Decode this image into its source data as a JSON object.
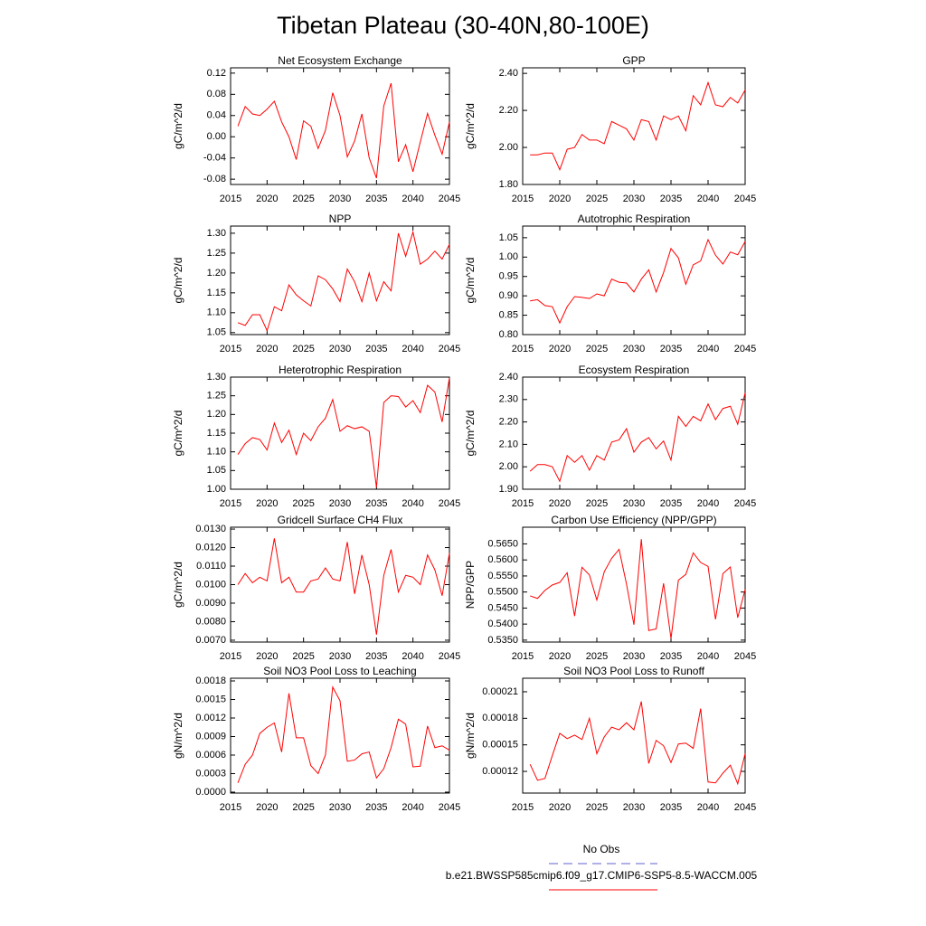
{
  "title": "Tibetan Plateau (30-40N,80-100E)",
  "legend": [
    {
      "label": "No Obs",
      "color": "#6060d0",
      "dashed": true
    },
    {
      "label": "b.e21.BWSSP585cmip6.f09_g17.CMIP6-SSP5-8.5-WACCM.005",
      "color": "#ff0000",
      "dashed": false
    }
  ],
  "chart_data": [
    {
      "type": "line",
      "title": "Net Ecosystem Exchange",
      "ylabel": "gC/m^2/d",
      "x": [
        2016,
        2017,
        2018,
        2019,
        2020,
        2021,
        2022,
        2023,
        2024,
        2025,
        2026,
        2027,
        2028,
        2029,
        2030,
        2031,
        2032,
        2033,
        2034,
        2035,
        2036,
        2037,
        2038,
        2039,
        2040,
        2041,
        2042,
        2043,
        2044,
        2045
      ],
      "series": [
        {
          "color": "#ff0000",
          "values": [
            0.02,
            0.057,
            0.043,
            0.04,
            0.052,
            0.067,
            0.028,
            0.0,
            -0.043,
            0.03,
            0.02,
            -0.022,
            0.012,
            0.083,
            0.04,
            -0.038,
            -0.008,
            0.043,
            -0.04,
            -0.078,
            0.058,
            0.101,
            -0.047,
            -0.015,
            -0.066,
            -0.01,
            0.044,
            0.003,
            -0.033,
            0.028
          ]
        }
      ],
      "xlim": [
        2015,
        2045
      ],
      "xticks": [
        2015,
        2020,
        2025,
        2030,
        2035,
        2040,
        2045
      ],
      "ylim": [
        -0.09,
        0.13
      ],
      "yticks": [
        0.12,
        0.08,
        0.04,
        {
          "value": 0,
          "label": "0.00"
        },
        -0.04,
        -0.08
      ]
    },
    {
      "type": "line",
      "title": "GPP",
      "ylabel": "gC/m^2/d",
      "x": [
        2016,
        2017,
        2018,
        2019,
        2020,
        2021,
        2022,
        2023,
        2024,
        2025,
        2026,
        2027,
        2028,
        2029,
        2030,
        2031,
        2032,
        2033,
        2034,
        2035,
        2036,
        2037,
        2038,
        2039,
        2040,
        2041,
        2042,
        2043,
        2044,
        2045
      ],
      "series": [
        {
          "color": "#ff0000",
          "values": [
            1.96,
            1.96,
            1.97,
            1.97,
            1.88,
            1.99,
            2.0,
            2.07,
            2.04,
            2.04,
            2.02,
            2.14,
            2.12,
            2.1,
            2.04,
            2.15,
            2.14,
            2.04,
            2.17,
            2.15,
            2.17,
            2.09,
            2.28,
            2.23,
            2.35,
            2.23,
            2.22,
            2.27,
            2.24,
            2.31
          ]
        }
      ],
      "xlim": [
        2015,
        2045
      ],
      "xticks": [
        2015,
        2020,
        2025,
        2030,
        2035,
        2040,
        2045
      ],
      "ylim": [
        1.8,
        2.43
      ],
      "yticks": [
        {
          "value": 2.4,
          "label": "2.40"
        },
        {
          "value": 2.2,
          "label": "2.20"
        },
        {
          "value": 2,
          "label": "2.00"
        },
        {
          "value": 1.8,
          "label": "1.80"
        }
      ]
    },
    {
      "type": "line",
      "title": "NPP",
      "ylabel": "gC/m^2/d",
      "x": [
        2016,
        2017,
        2018,
        2019,
        2020,
        2021,
        2022,
        2023,
        2024,
        2025,
        2026,
        2027,
        2028,
        2029,
        2030,
        2031,
        2032,
        2033,
        2034,
        2035,
        2036,
        2037,
        2038,
        2039,
        2040,
        2041,
        2042,
        2043,
        2044,
        2045
      ],
      "series": [
        {
          "color": "#ff0000",
          "values": [
            1.075,
            1.068,
            1.095,
            1.095,
            1.055,
            1.115,
            1.105,
            1.17,
            1.145,
            1.13,
            1.117,
            1.193,
            1.183,
            1.16,
            1.128,
            1.21,
            1.178,
            1.128,
            1.2,
            1.13,
            1.178,
            1.155,
            1.3,
            1.242,
            1.303,
            1.222,
            1.235,
            1.255,
            1.235,
            1.272
          ]
        }
      ],
      "xlim": [
        2015,
        2045
      ],
      "xticks": [
        2015,
        2020,
        2025,
        2030,
        2035,
        2040,
        2045
      ],
      "ylim": [
        1.045,
        1.318
      ],
      "yticks": [
        {
          "value": 1.3,
          "label": "1.30"
        },
        1.25,
        {
          "value": 1.2,
          "label": "1.20"
        },
        1.15,
        {
          "value": 1.1,
          "label": "1.10"
        },
        1.05
      ]
    },
    {
      "type": "line",
      "title": "Autotrophic Respiration",
      "ylabel": "gC/m^2/d",
      "x": [
        2016,
        2017,
        2018,
        2019,
        2020,
        2021,
        2022,
        2023,
        2024,
        2025,
        2026,
        2027,
        2028,
        2029,
        2030,
        2031,
        2032,
        2033,
        2034,
        2035,
        2036,
        2037,
        2038,
        2039,
        2040,
        2041,
        2042,
        2043,
        2044,
        2045
      ],
      "series": [
        {
          "color": "#ff0000",
          "values": [
            0.887,
            0.89,
            0.875,
            0.872,
            0.83,
            0.872,
            0.898,
            0.896,
            0.893,
            0.905,
            0.9,
            0.943,
            0.935,
            0.933,
            0.91,
            0.943,
            0.967,
            0.91,
            0.96,
            1.022,
            0.998,
            0.93,
            0.98,
            0.99,
            1.045,
            1.005,
            0.982,
            1.013,
            1.006,
            1.04
          ]
        }
      ],
      "xlim": [
        2015,
        2045
      ],
      "xticks": [
        2015,
        2020,
        2025,
        2030,
        2035,
        2040,
        2045
      ],
      "ylim": [
        0.8,
        1.08
      ],
      "yticks": [
        1.05,
        {
          "value": 1,
          "label": "1.00"
        },
        0.95,
        {
          "value": 0.9,
          "label": "0.90"
        },
        0.85,
        {
          "value": 0.8,
          "label": "0.80"
        }
      ]
    },
    {
      "type": "line",
      "title": "Heterotrophic Respiration",
      "ylabel": "gC/m^2/d",
      "x": [
        2016,
        2017,
        2018,
        2019,
        2020,
        2021,
        2022,
        2023,
        2024,
        2025,
        2026,
        2027,
        2028,
        2029,
        2030,
        2031,
        2032,
        2033,
        2034,
        2035,
        2036,
        2037,
        2038,
        2039,
        2040,
        2041,
        2042,
        2043,
        2044,
        2045
      ],
      "series": [
        {
          "color": "#ff0000",
          "values": [
            1.093,
            1.122,
            1.138,
            1.133,
            1.105,
            1.177,
            1.125,
            1.158,
            1.093,
            1.15,
            1.13,
            1.167,
            1.19,
            1.24,
            1.155,
            1.17,
            1.162,
            1.167,
            1.155,
            1.005,
            1.232,
            1.25,
            1.248,
            1.22,
            1.237,
            1.205,
            1.278,
            1.26,
            1.18,
            1.298
          ]
        }
      ],
      "xlim": [
        2015,
        2045
      ],
      "xticks": [
        2015,
        2020,
        2025,
        2030,
        2035,
        2040,
        2045
      ],
      "ylim": [
        1.0,
        1.3
      ],
      "yticks": [
        {
          "value": 1.3,
          "label": "1.30"
        },
        1.25,
        {
          "value": 1.2,
          "label": "1.20"
        },
        1.15,
        {
          "value": 1.1,
          "label": "1.10"
        },
        1.05,
        {
          "value": 1,
          "label": "1.00"
        }
      ]
    },
    {
      "type": "line",
      "title": "Ecosystem Respiration",
      "ylabel": "gC/m^2/d",
      "x": [
        2016,
        2017,
        2018,
        2019,
        2020,
        2021,
        2022,
        2023,
        2024,
        2025,
        2026,
        2027,
        2028,
        2029,
        2030,
        2031,
        2032,
        2033,
        2034,
        2035,
        2036,
        2037,
        2038,
        2039,
        2040,
        2041,
        2042,
        2043,
        2044,
        2045
      ],
      "series": [
        {
          "color": "#ff0000",
          "values": [
            1.98,
            2.01,
            2.01,
            2.0,
            1.935,
            2.05,
            2.02,
            2.05,
            1.985,
            2.05,
            2.03,
            2.11,
            2.12,
            2.17,
            2.065,
            2.11,
            2.13,
            2.08,
            2.115,
            2.03,
            2.225,
            2.18,
            2.225,
            2.205,
            2.28,
            2.21,
            2.26,
            2.27,
            2.19,
            2.33
          ]
        }
      ],
      "xlim": [
        2015,
        2045
      ],
      "xticks": [
        2015,
        2020,
        2025,
        2030,
        2035,
        2040,
        2045
      ],
      "ylim": [
        1.9,
        2.4
      ],
      "yticks": [
        {
          "value": 2.4,
          "label": "2.40"
        },
        {
          "value": 2.3,
          "label": "2.30"
        },
        {
          "value": 2.2,
          "label": "2.20"
        },
        {
          "value": 2.1,
          "label": "2.10"
        },
        {
          "value": 2,
          "label": "2.00"
        },
        {
          "value": 1.9,
          "label": "1.90"
        }
      ]
    },
    {
      "type": "line",
      "title": "Gridcell Surface CH4 Flux",
      "ylabel": "gC/m^2/d",
      "x": [
        2016,
        2017,
        2018,
        2019,
        2020,
        2021,
        2022,
        2023,
        2024,
        2025,
        2026,
        2027,
        2028,
        2029,
        2030,
        2031,
        2032,
        2033,
        2034,
        2035,
        2036,
        2037,
        2038,
        2039,
        2040,
        2041,
        2042,
        2043,
        2044,
        2045
      ],
      "series": [
        {
          "color": "#ff0000",
          "values": [
            0.01,
            0.0106,
            0.0101,
            0.0104,
            0.0102,
            0.0125,
            0.0101,
            0.0104,
            0.0096,
            0.0096,
            0.0102,
            0.0103,
            0.0109,
            0.0103,
            0.0102,
            0.0123,
            0.0095,
            0.0116,
            0.01,
            0.0073,
            0.0105,
            0.0119,
            0.0096,
            0.0105,
            0.0104,
            0.01,
            0.0116,
            0.0108,
            0.0094,
            0.0117
          ]
        }
      ],
      "xlim": [
        2015,
        2045
      ],
      "xticks": [
        2015,
        2020,
        2025,
        2030,
        2035,
        2040,
        2045
      ],
      "ylim": [
        0.0069,
        0.0131
      ],
      "yticks": [
        {
          "value": 0.013,
          "label": "0.0130"
        },
        {
          "value": 0.012,
          "label": "0.0120"
        },
        {
          "value": 0.011,
          "label": "0.0110"
        },
        {
          "value": 0.01,
          "label": "0.0100"
        },
        {
          "value": 0.009,
          "label": "0.0090"
        },
        {
          "value": 0.008,
          "label": "0.0080"
        },
        {
          "value": 0.007,
          "label": "0.0070"
        }
      ]
    },
    {
      "type": "line",
      "title": "Carbon Use Efficiency (NPP/GPP)",
      "ylabel": "NPP/GPP",
      "x": [
        2016,
        2017,
        2018,
        2019,
        2020,
        2021,
        2022,
        2023,
        2024,
        2025,
        2026,
        2027,
        2028,
        2029,
        2030,
        2031,
        2032,
        2033,
        2034,
        2035,
        2036,
        2037,
        2038,
        2039,
        2040,
        2041,
        2042,
        2043,
        2044,
        2045
      ],
      "series": [
        {
          "color": "#ff0000",
          "values": [
            0.5488,
            0.548,
            0.5505,
            0.5522,
            0.553,
            0.556,
            0.5425,
            0.5577,
            0.5553,
            0.5475,
            0.5563,
            0.5605,
            0.5633,
            0.5525,
            0.5398,
            0.5665,
            0.538,
            0.5385,
            0.5527,
            0.5355,
            0.5537,
            0.5555,
            0.5622,
            0.5592,
            0.558,
            0.5415,
            0.5557,
            0.5578,
            0.542,
            0.5508
          ]
        }
      ],
      "xlim": [
        2015,
        2045
      ],
      "xticks": [
        2015,
        2020,
        2025,
        2030,
        2035,
        2040,
        2045
      ],
      "ylim": [
        0.5344,
        0.5702
      ],
      "yticks": [
        {
          "value": 0.565,
          "label": "0.5650"
        },
        {
          "value": 0.56,
          "label": "0.5600"
        },
        {
          "value": 0.555,
          "label": "0.5550"
        },
        {
          "value": 0.55,
          "label": "0.5500"
        },
        {
          "value": 0.545,
          "label": "0.5450"
        },
        {
          "value": 0.54,
          "label": "0.5400"
        },
        {
          "value": 0.535,
          "label": "0.5350"
        }
      ]
    },
    {
      "type": "line",
      "title": "Soil NO3 Pool Loss to Leaching",
      "ylabel": "gN/m^2/d",
      "x": [
        2016,
        2017,
        2018,
        2019,
        2020,
        2021,
        2022,
        2023,
        2024,
        2025,
        2026,
        2027,
        2028,
        2029,
        2030,
        2031,
        2032,
        2033,
        2034,
        2035,
        2036,
        2037,
        2038,
        2039,
        2040,
        2041,
        2042,
        2043,
        2044,
        2045
      ],
      "series": [
        {
          "color": "#ff0000",
          "values": [
            0.00015,
            0.00045,
            0.0006,
            0.00095,
            0.00105,
            0.00112,
            0.00065,
            0.0016,
            0.00088,
            0.00088,
            0.00043,
            0.0003,
            0.0006,
            0.0017,
            0.00148,
            0.0005,
            0.00052,
            0.00062,
            0.00065,
            0.00023,
            0.00038,
            0.00072,
            0.00118,
            0.0011,
            0.00041,
            0.00042,
            0.00107,
            0.00072,
            0.00075,
            0.00068
          ]
        }
      ],
      "xlim": [
        2015,
        2045
      ],
      "xticks": [
        2015,
        2020,
        2025,
        2030,
        2035,
        2040,
        2045
      ],
      "ylim": [
        -1.5e-05,
        0.001844
      ],
      "yticks": [
        0.0018,
        0.0015,
        0.0012,
        0.0009,
        0.0006,
        0.0003,
        {
          "value": 0,
          "label": "0.0000"
        }
      ]
    },
    {
      "type": "line",
      "title": "Soil NO3 Pool Loss to Runoff",
      "ylabel": "gN/m^2/d",
      "x": [
        2016,
        2017,
        2018,
        2019,
        2020,
        2021,
        2022,
        2023,
        2024,
        2025,
        2026,
        2027,
        2028,
        2029,
        2030,
        2031,
        2032,
        2033,
        2034,
        2035,
        2036,
        2037,
        2038,
        2039,
        2040,
        2041,
        2042,
        2043,
        2044,
        2045
      ],
      "series": [
        {
          "color": "#ff0000",
          "values": [
            0.000128,
            0.00011,
            0.000112,
            0.000138,
            0.000163,
            0.000157,
            0.000161,
            0.000156,
            0.00018,
            0.00014,
            0.000159,
            0.00017,
            0.000167,
            0.000175,
            0.000167,
            0.000199,
            0.000129,
            0.000155,
            0.000149,
            0.00013,
            0.000151,
            0.000152,
            0.000146,
            0.000191,
            0.000108,
            0.000107,
            0.000118,
            0.000127,
            0.000106,
            0.00014
          ]
        }
      ],
      "xlim": [
        2015,
        2045
      ],
      "xticks": [
        2015,
        2020,
        2025,
        2030,
        2035,
        2040,
        2045
      ],
      "ylim": [
        9.55e-05,
        0.0002253
      ],
      "yticks": [
        0.00021,
        0.00018,
        0.00015,
        0.00012
      ]
    }
  ]
}
